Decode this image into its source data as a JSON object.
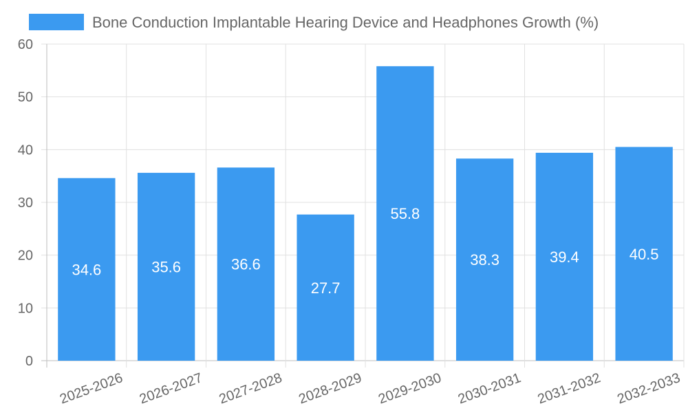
{
  "chart_data": {
    "type": "bar",
    "title": "",
    "xlabel": "",
    "ylabel": "",
    "categories": [
      "2025-2026",
      "2026-2027",
      "2027-2028",
      "2028-2029",
      "2029-2030",
      "2030-2031",
      "2031-2032",
      "2032-2033"
    ],
    "series": [
      {
        "name": "Bone Conduction Implantable Hearing Device and Headphones Growth (%)",
        "values": [
          34.6,
          35.6,
          36.6,
          27.7,
          55.8,
          38.3,
          39.4,
          40.5
        ],
        "color": "#3b9af0"
      }
    ],
    "ylim": [
      0,
      60
    ],
    "yticks": [
      0,
      10,
      20,
      30,
      40,
      50,
      60
    ],
    "grid": true,
    "legend_position": "top"
  },
  "colors": {
    "bar": "#3b9af0",
    "grid": "#e0e0e0",
    "axis": "#bdbdbd",
    "text": "#666666"
  }
}
